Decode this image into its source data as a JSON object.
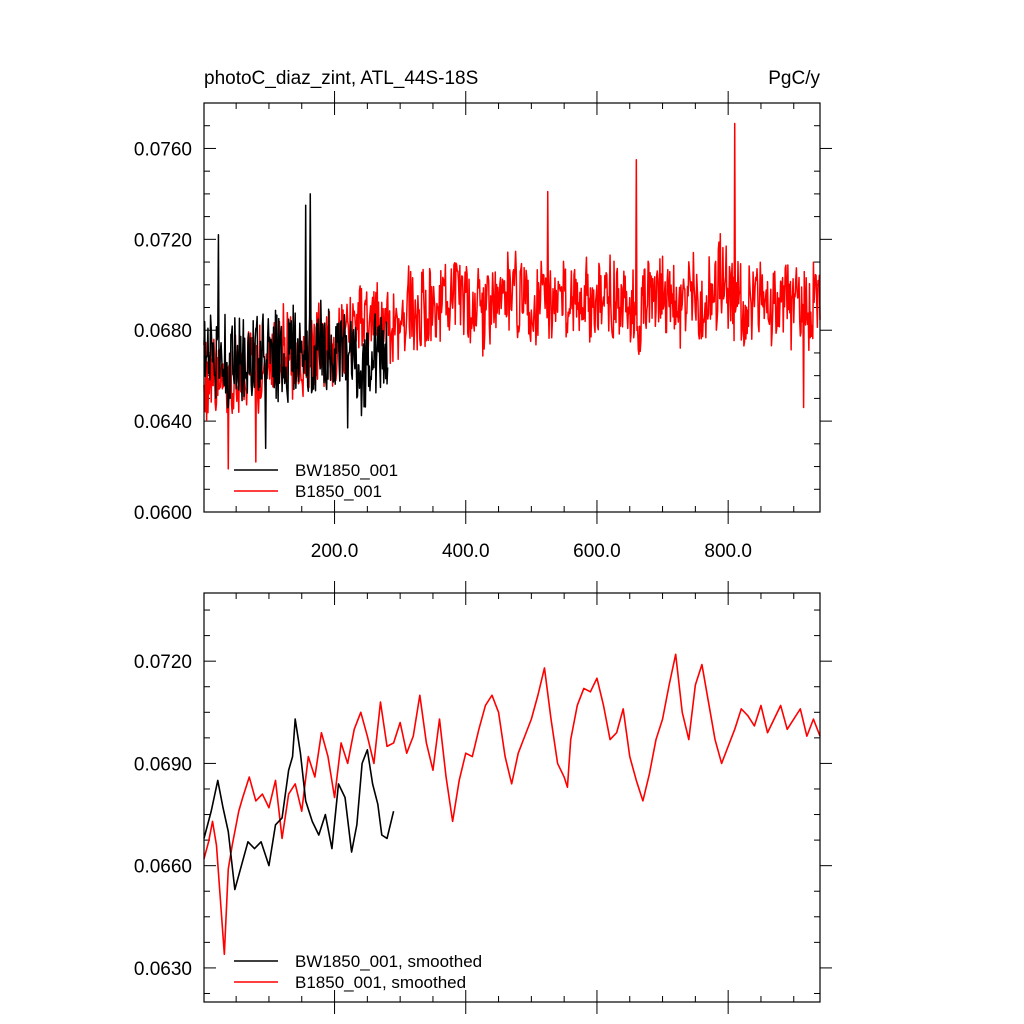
{
  "chart_data": [
    {
      "type": "line",
      "title": "photoC_diaz_zint, ATL_44S-18S",
      "units": "PgC/y",
      "xlim": [
        1,
        940
      ],
      "ylim": [
        0.06,
        0.078
      ],
      "xticks": [
        200,
        400,
        600,
        800
      ],
      "xtick_labels": [
        "200.0",
        "400.0",
        "600.0",
        "800.0"
      ],
      "yticks": [
        0.06,
        0.064,
        0.068,
        0.072,
        0.076
      ],
      "ytick_labels": [
        "0.0600",
        "0.0640",
        "0.0680",
        "0.0720",
        "0.0760"
      ],
      "legend_position": "bottom-left",
      "series": [
        {
          "name": "BW1850_001",
          "color": "#000000",
          "x": [
            1,
            281
          ],
          "stats": {
            "start": 0.0668,
            "end": 0.067,
            "mean": 0.0668,
            "min": 0.0628,
            "max": 0.074,
            "amp": 0.0019
          },
          "landmarks": [
            [
              23,
              0.0722
            ],
            [
              95,
              0.0628
            ],
            [
              156,
              0.0735
            ],
            [
              163,
              0.074
            ],
            [
              220,
              0.0637
            ]
          ]
        },
        {
          "name": "B1850_001",
          "color": "#ff0000",
          "x": [
            1,
            940
          ],
          "stats": {
            "start": 0.0655,
            "end": 0.0694,
            "mean": 0.0694,
            "min": 0.0619,
            "max": 0.0771,
            "amp": 0.0017
          },
          "landmarks": [
            [
              38,
              0.0619
            ],
            [
              80,
              0.0622
            ],
            [
              525,
              0.0741
            ],
            [
              660,
              0.0755
            ],
            [
              810,
              0.0771
            ],
            [
              915,
              0.0646
            ]
          ]
        }
      ]
    },
    {
      "type": "line",
      "xlim": [
        1,
        940
      ],
      "ylim": [
        0.062,
        0.074
      ],
      "yticks": [
        0.063,
        0.066,
        0.069,
        0.072
      ],
      "ytick_labels": [
        "0.0630",
        "0.0660",
        "0.0690",
        "0.0720"
      ],
      "legend_position": "bottom-left",
      "series": [
        {
          "name": "BW1850_001, smoothed",
          "color": "#000000",
          "x": [
            1,
            290
          ],
          "points": [
            [
              1,
              0.0668
            ],
            [
              12,
              0.0676
            ],
            [
              22,
              0.0685
            ],
            [
              30,
              0.0677
            ],
            [
              38,
              0.067
            ],
            [
              48,
              0.0653
            ],
            [
              58,
              0.066
            ],
            [
              68,
              0.0667
            ],
            [
              78,
              0.0665
            ],
            [
              88,
              0.0667
            ],
            [
              100,
              0.066
            ],
            [
              110,
              0.0672
            ],
            [
              120,
              0.0674
            ],
            [
              130,
              0.0688
            ],
            [
              136,
              0.0692
            ],
            [
              140,
              0.0703
            ],
            [
              148,
              0.0693
            ],
            [
              156,
              0.0679
            ],
            [
              166,
              0.0673
            ],
            [
              176,
              0.0669
            ],
            [
              186,
              0.0675
            ],
            [
              196,
              0.0665
            ],
            [
              206,
              0.0684
            ],
            [
              216,
              0.068
            ],
            [
              226,
              0.0664
            ],
            [
              234,
              0.0672
            ],
            [
              242,
              0.069
            ],
            [
              250,
              0.0694
            ],
            [
              258,
              0.0684
            ],
            [
              266,
              0.0678
            ],
            [
              272,
              0.0669
            ],
            [
              280,
              0.0668
            ],
            [
              290,
              0.0676
            ]
          ]
        },
        {
          "name": "B1850_001, smoothed",
          "color": "#ff0000",
          "x": [
            1,
            940
          ],
          "points": [
            [
              1,
              0.0662
            ],
            [
              8,
              0.0667
            ],
            [
              14,
              0.0673
            ],
            [
              20,
              0.0666
            ],
            [
              26,
              0.065
            ],
            [
              32,
              0.0634
            ],
            [
              38,
              0.0659
            ],
            [
              44,
              0.0666
            ],
            [
              54,
              0.0676
            ],
            [
              60,
              0.068
            ],
            [
              70,
              0.0686
            ],
            [
              80,
              0.0679
            ],
            [
              90,
              0.0681
            ],
            [
              100,
              0.0677
            ],
            [
              110,
              0.0685
            ],
            [
              120,
              0.0668
            ],
            [
              130,
              0.0681
            ],
            [
              140,
              0.0684
            ],
            [
              150,
              0.0676
            ],
            [
              160,
              0.0692
            ],
            [
              170,
              0.0686
            ],
            [
              180,
              0.0699
            ],
            [
              190,
              0.0692
            ],
            [
              200,
              0.068
            ],
            [
              210,
              0.0696
            ],
            [
              220,
              0.069
            ],
            [
              230,
              0.07
            ],
            [
              240,
              0.0705
            ],
            [
              250,
              0.0698
            ],
            [
              260,
              0.069
            ],
            [
              270,
              0.0708
            ],
            [
              280,
              0.0695
            ],
            [
              290,
              0.0696
            ],
            [
              300,
              0.0702
            ],
            [
              310,
              0.0693
            ],
            [
              320,
              0.0698
            ],
            [
              330,
              0.071
            ],
            [
              340,
              0.0696
            ],
            [
              350,
              0.0688
            ],
            [
              360,
              0.0703
            ],
            [
              370,
              0.0686
            ],
            [
              380,
              0.0673
            ],
            [
              390,
              0.0685
            ],
            [
              400,
              0.0693
            ],
            [
              410,
              0.0692
            ],
            [
              420,
              0.07
            ],
            [
              430,
              0.0707
            ],
            [
              440,
              0.071
            ],
            [
              450,
              0.0705
            ],
            [
              460,
              0.0692
            ],
            [
              470,
              0.0684
            ],
            [
              480,
              0.0693
            ],
            [
              490,
              0.0698
            ],
            [
              500,
              0.0703
            ],
            [
              510,
              0.071
            ],
            [
              520,
              0.0718
            ],
            [
              530,
              0.0703
            ],
            [
              540,
              0.069
            ],
            [
              550,
              0.0686
            ],
            [
              555,
              0.0683
            ],
            [
              560,
              0.0697
            ],
            [
              570,
              0.0707
            ],
            [
              580,
              0.0712
            ],
            [
              590,
              0.0711
            ],
            [
              600,
              0.0715
            ],
            [
              610,
              0.0707
            ],
            [
              620,
              0.0697
            ],
            [
              630,
              0.0699
            ],
            [
              640,
              0.0706
            ],
            [
              650,
              0.0692
            ],
            [
              660,
              0.0685
            ],
            [
              670,
              0.0679
            ],
            [
              680,
              0.0687
            ],
            [
              690,
              0.0697
            ],
            [
              700,
              0.0703
            ],
            [
              710,
              0.0713
            ],
            [
              720,
              0.0722
            ],
            [
              730,
              0.0705
            ],
            [
              740,
              0.0697
            ],
            [
              750,
              0.0713
            ],
            [
              760,
              0.0719
            ],
            [
              770,
              0.0708
            ],
            [
              780,
              0.0697
            ],
            [
              790,
              0.069
            ],
            [
              800,
              0.0695
            ],
            [
              810,
              0.07
            ],
            [
              820,
              0.0706
            ],
            [
              830,
              0.0704
            ],
            [
              840,
              0.0701
            ],
            [
              850,
              0.0707
            ],
            [
              860,
              0.0699
            ],
            [
              870,
              0.0703
            ],
            [
              880,
              0.0707
            ],
            [
              890,
              0.07
            ],
            [
              900,
              0.0703
            ],
            [
              910,
              0.0706
            ],
            [
              920,
              0.0698
            ],
            [
              930,
              0.0703
            ],
            [
              940,
              0.0698
            ]
          ]
        }
      ]
    }
  ]
}
